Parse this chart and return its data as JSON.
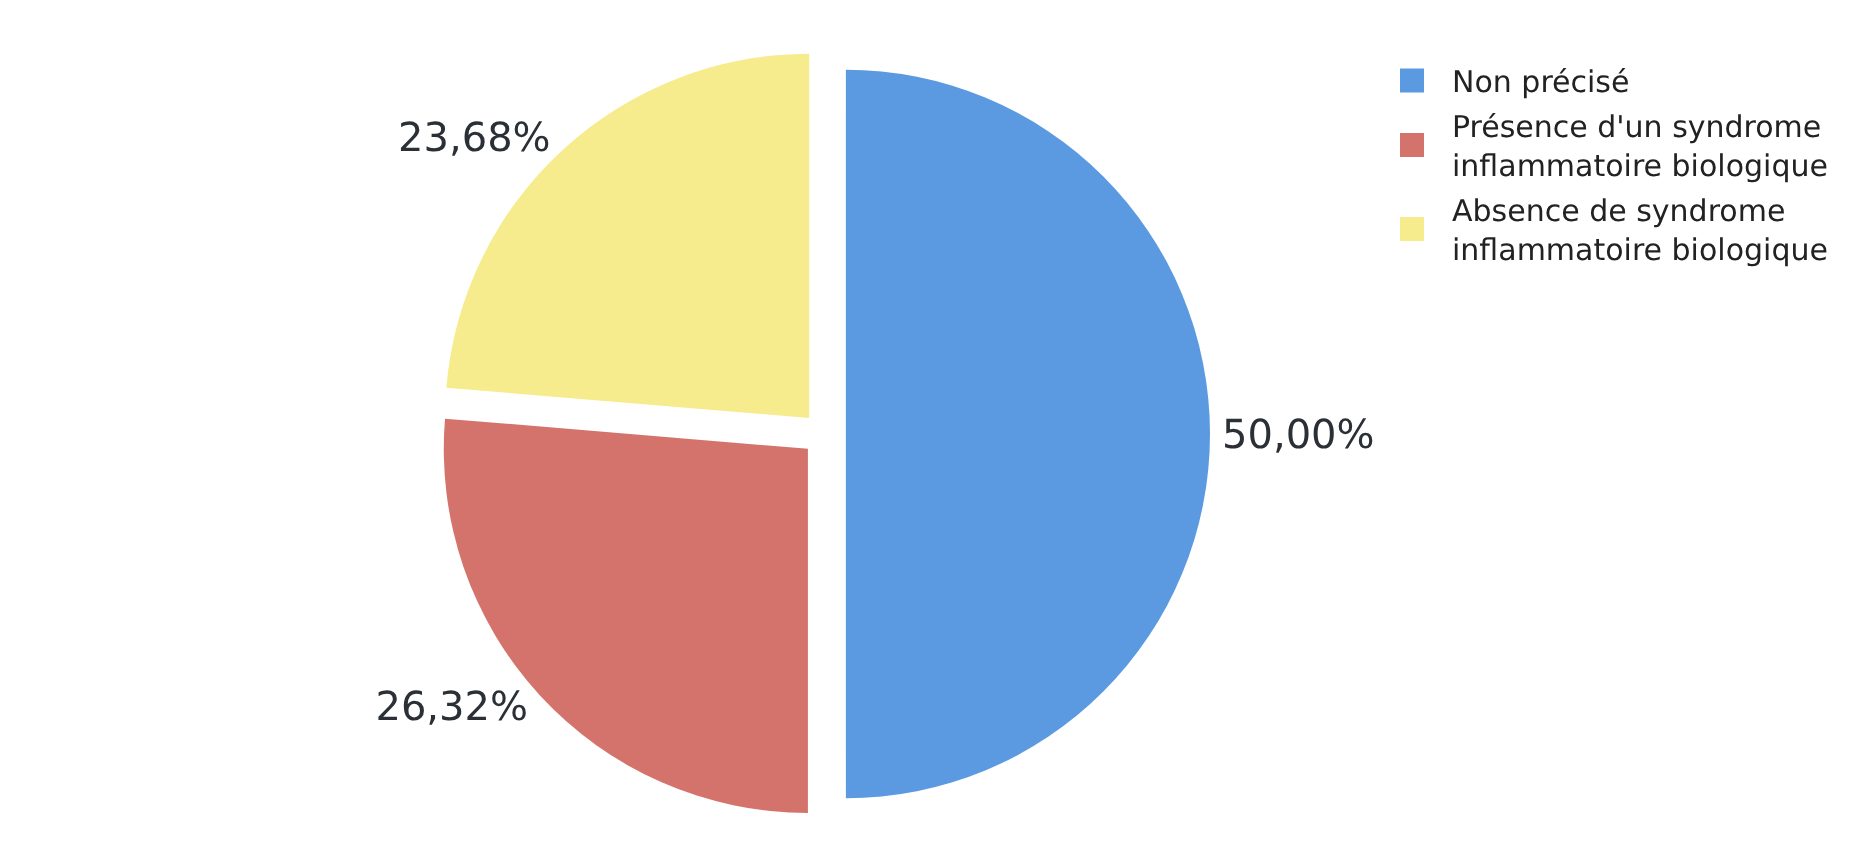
{
  "chart_data": {
    "type": "pie",
    "categories": [
      "Non précisé",
      "Présence d'un syndrome inflammatoire biologique",
      "Absence de syndrome inflammatoire biologique"
    ],
    "values": [
      50.0,
      26.32,
      23.68
    ],
    "value_labels": [
      "50,00%",
      "26,32%",
      "23,68%"
    ],
    "colors": [
      "#5b9ae0",
      "#d4736c",
      "#f6ec8e"
    ],
    "legend": "top right"
  }
}
